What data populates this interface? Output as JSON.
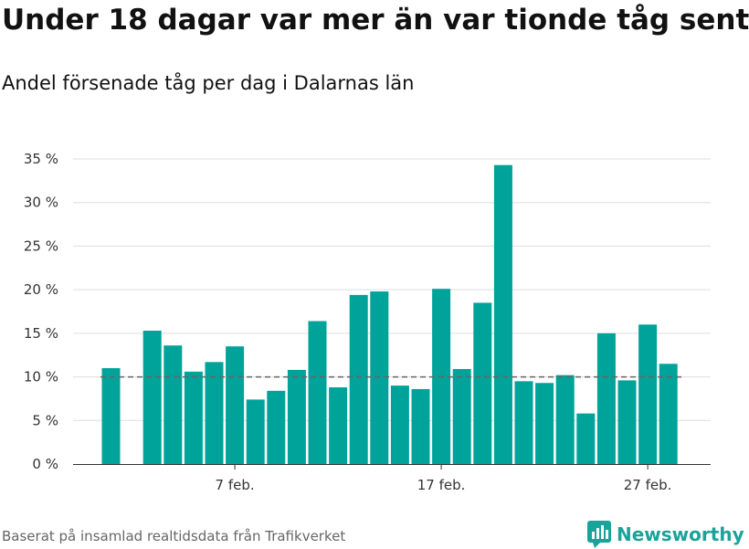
{
  "header": {
    "title": "Under 18 dagar var mer än var tionde tåg sent",
    "subtitle": "Andel försenade tåg per dag i Dalarnas län"
  },
  "footer": {
    "source": "Baserat på insamlad realtidsdata från Trafikverket",
    "brand": "Newsworthy"
  },
  "colors": {
    "bar": "#00a39a",
    "reference_line": "#666666",
    "brand": "#1aa39a"
  },
  "chart_data": {
    "type": "bar",
    "title": "Under 18 dagar var mer än var tionde tåg sent",
    "subtitle": "Andel försenade tåg per dag i Dalarnas län",
    "unit": "%",
    "x": [
      "2024-02-01",
      "2024-02-02",
      "2024-02-03",
      "2024-02-04",
      "2024-02-05",
      "2024-02-06",
      "2024-02-07",
      "2024-02-08",
      "2024-02-09",
      "2024-02-10",
      "2024-02-11",
      "2024-02-12",
      "2024-02-13",
      "2024-02-14",
      "2024-02-15",
      "2024-02-16",
      "2024-02-17",
      "2024-02-18",
      "2024-02-19",
      "2024-02-20",
      "2024-02-21",
      "2024-02-22",
      "2024-02-23",
      "2024-02-24",
      "2024-02-25",
      "2024-02-26",
      "2024-02-27",
      "2024-02-28"
    ],
    "values": [
      11.0,
      null,
      15.3,
      13.6,
      10.6,
      11.7,
      13.5,
      7.4,
      8.4,
      10.8,
      16.4,
      8.8,
      19.4,
      19.8,
      9.0,
      8.6,
      20.1,
      10.9,
      18.5,
      34.3,
      9.5,
      9.3,
      10.2,
      5.8,
      15.0,
      9.6,
      16.0,
      11.5
    ],
    "reference_line": 10,
    "ylim": [
      0,
      35
    ],
    "yticks": [
      {
        "value": 0,
        "label": "0 %"
      },
      {
        "value": 5,
        "label": "5 %"
      },
      {
        "value": 10,
        "label": "10 %"
      },
      {
        "value": 15,
        "label": "15 %"
      },
      {
        "value": 20,
        "label": "20 %"
      },
      {
        "value": 25,
        "label": "25 %"
      },
      {
        "value": 30,
        "label": "30 %"
      },
      {
        "value": 35,
        "label": "35 %"
      }
    ],
    "xticks": [
      {
        "value": "2024-02-07",
        "label": "7 feb."
      },
      {
        "value": "2024-02-17",
        "label": "17 feb."
      },
      {
        "value": "2024-02-27",
        "label": "27 feb."
      }
    ],
    "grid": true,
    "legend": "none"
  }
}
